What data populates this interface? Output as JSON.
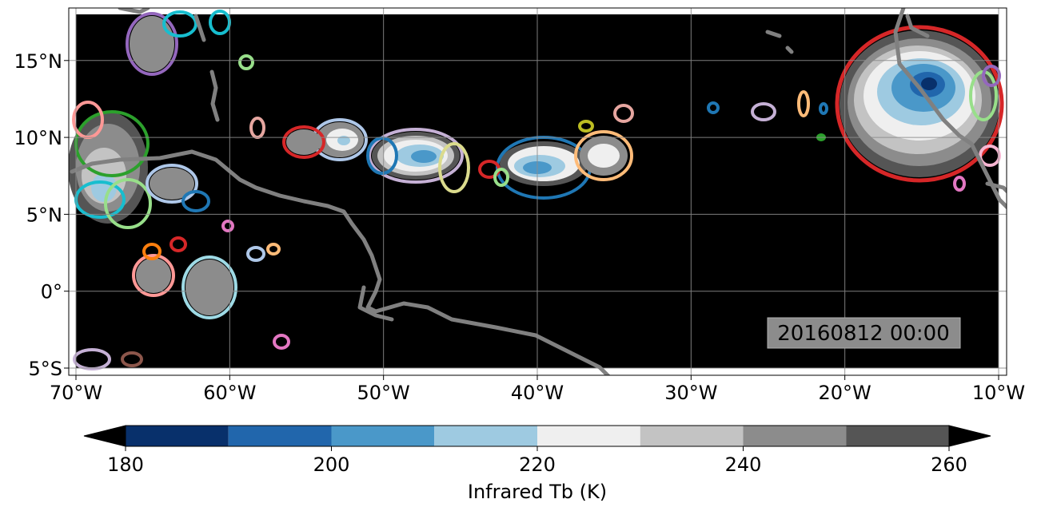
{
  "map": {
    "timestamp": "20160812 00:00",
    "lon_range": [
      -70,
      -10
    ],
    "lat_range": [
      -5,
      18
    ],
    "lon_ticks": [
      {
        "value": -70,
        "label": "70°W"
      },
      {
        "value": -60,
        "label": "60°W"
      },
      {
        "value": -50,
        "label": "50°W"
      },
      {
        "value": -40,
        "label": "40°W"
      },
      {
        "value": -30,
        "label": "30°W"
      },
      {
        "value": -20,
        "label": "20°W"
      },
      {
        "value": -10,
        "label": "10°W"
      }
    ],
    "lat_ticks": [
      {
        "value": 15,
        "label": "15°N"
      },
      {
        "value": 10,
        "label": "10°N"
      },
      {
        "value": 5,
        "label": "5°N"
      },
      {
        "value": 0,
        "label": "0°"
      },
      {
        "value": -5,
        "label": "5°S"
      }
    ],
    "grid": true,
    "background_color": "#000000",
    "coastline_color": "#808080"
  },
  "colorbar": {
    "title": "Infrared Tb (K)",
    "ticks": [
      {
        "value": 180,
        "label": "180"
      },
      {
        "value": 200,
        "label": "200"
      },
      {
        "value": 220,
        "label": "220"
      },
      {
        "value": 240,
        "label": "240"
      },
      {
        "value": 260,
        "label": "260"
      }
    ],
    "levels": [
      180,
      190,
      200,
      210,
      220,
      230,
      240,
      250,
      260
    ],
    "colors": [
      "#08306b",
      "#2166ac",
      "#4a98c9",
      "#9ecae1",
      "#efefef",
      "#c3c3c3",
      "#8c8c8c",
      "#555555"
    ],
    "extend": "both",
    "under_color": "#000000",
    "over_color": "#000000"
  }
}
